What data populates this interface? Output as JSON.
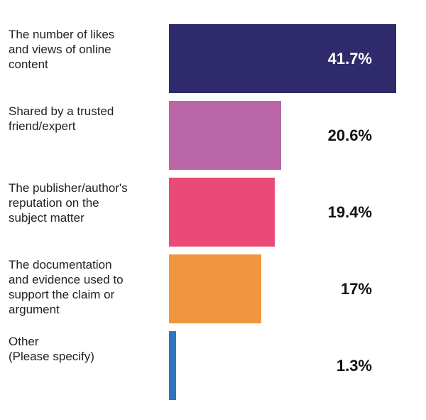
{
  "chart_data": {
    "type": "bar",
    "orientation": "horizontal",
    "categories": [
      "The number of likes\nand views of online\ncontent",
      "Shared by a trusted\nfriend/expert",
      "The publisher/author's\nreputation on the\nsubject matter",
      "The documentation\nand evidence used to\nsupport the claim or\nargument",
      "Other\n(Please specify)"
    ],
    "values": [
      41.7,
      20.6,
      19.4,
      17,
      1.3
    ],
    "value_labels": [
      "41.7%",
      "20.6%",
      "19.4%",
      "17%",
      "1.3%"
    ],
    "colors": [
      "#2e2a6c",
      "#b967a8",
      "#e94a78",
      "#f0963e",
      "#2f74c0"
    ]
  }
}
